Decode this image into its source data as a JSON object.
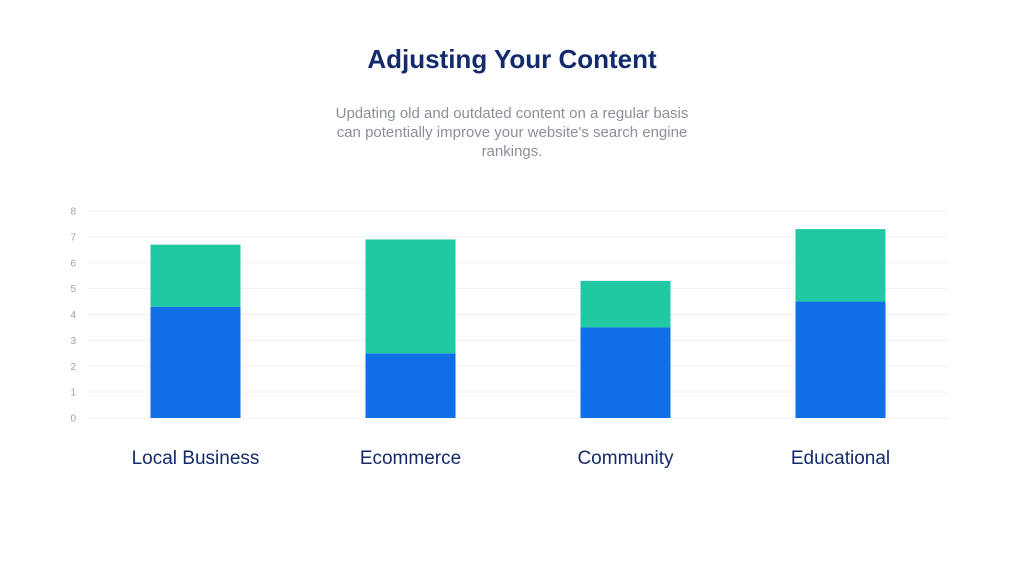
{
  "header": {
    "title": "Adjusting Your Content",
    "subtitle": "Updating old and outdated content on a regular basis can potentially improve your website's search engine rankings."
  },
  "chart_data": {
    "type": "bar",
    "stacked": true,
    "categories": [
      "Local Business",
      "Ecommerce",
      "Community",
      "Educational"
    ],
    "series": [
      {
        "values": [
          4.3,
          2.5,
          3.5,
          4.5
        ],
        "color": "#0f6fe6"
      },
      {
        "values": [
          2.4,
          4.4,
          1.8,
          2.8
        ],
        "color": "#20c9a3"
      }
    ],
    "ylim": [
      0,
      8
    ],
    "yticks": [
      "0",
      "1",
      "2",
      "3",
      "4",
      "5",
      "6",
      "7",
      "8"
    ],
    "grid": true,
    "legend": "none"
  }
}
